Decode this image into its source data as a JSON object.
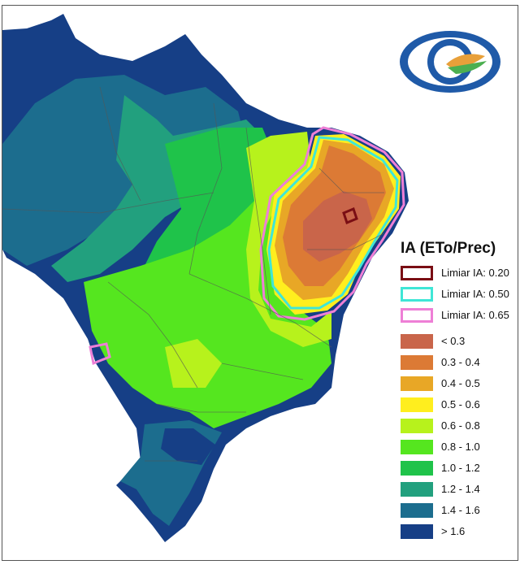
{
  "legend": {
    "title": "IA (ETo/Prec)",
    "thresholds": [
      {
        "label": "Limiar IA: 0.20",
        "color": "#7a0e14"
      },
      {
        "label": "Limiar IA: 0.50",
        "color": "#3fe6d6"
      },
      {
        "label": "Limiar IA: 0.65",
        "color": "#ee7fd6"
      }
    ],
    "classes": [
      {
        "label": "< 0.3",
        "color": "#c9654a"
      },
      {
        "label": "0.3 - 0.4",
        "color": "#dc7a35"
      },
      {
        "label": "0.4 - 0.5",
        "color": "#e8a726"
      },
      {
        "label": "0.5 - 0.6",
        "color": "#ffee1e"
      },
      {
        "label": "0.6 - 0.8",
        "color": "#b7f21c"
      },
      {
        "label": "0.8 - 1.0",
        "color": "#55e61f"
      },
      {
        "label": "1.0 - 1.2",
        "color": "#1fc34a"
      },
      {
        "label": "1.2 - 1.4",
        "color": "#22a07e"
      },
      {
        "label": "1.4 - 1.6",
        "color": "#1c6d8e"
      },
      {
        "label": "> 1.6",
        "color": "#163f86"
      }
    ]
  },
  "logo": {
    "icon": "eye-icon",
    "colors": [
      "#1f5aa8",
      "#e8a03a",
      "#4caf50"
    ]
  }
}
